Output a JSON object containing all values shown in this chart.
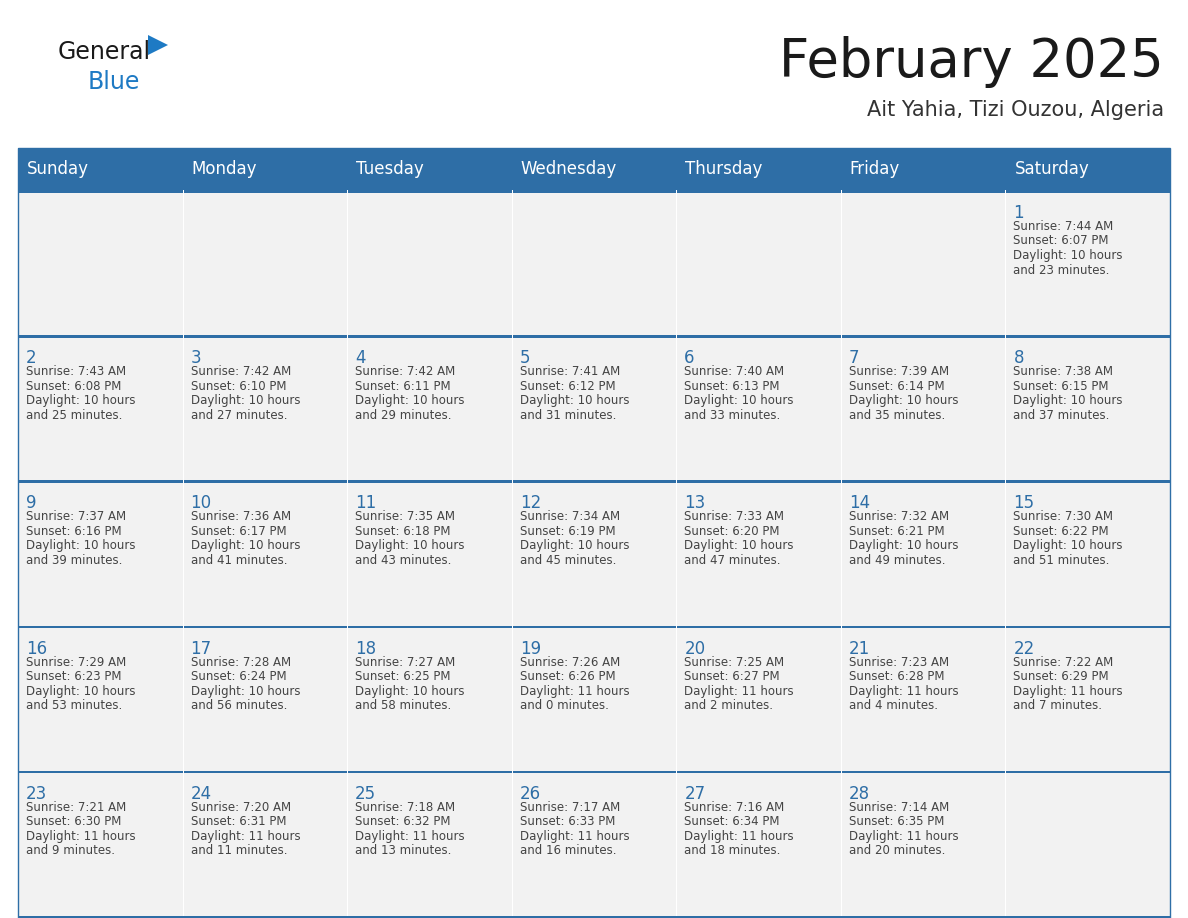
{
  "title": "February 2025",
  "subtitle": "Ait Yahia, Tizi Ouzou, Algeria",
  "header_bg": "#2E6EA6",
  "header_text_color": "#FFFFFF",
  "cell_bg": "#F2F2F2",
  "day_names": [
    "Sunday",
    "Monday",
    "Tuesday",
    "Wednesday",
    "Thursday",
    "Friday",
    "Saturday"
  ],
  "title_color": "#1a1a1a",
  "subtitle_color": "#333333",
  "line_color": "#2E6EA6",
  "day_number_color": "#2E6EA6",
  "cell_text_color": "#444444",
  "logo_black": "#1a1a1a",
  "logo_blue": "#1E7AC4",
  "logo_triangle": "#1E7AC4",
  "weeks": [
    [
      {
        "day": null,
        "info": null
      },
      {
        "day": null,
        "info": null
      },
      {
        "day": null,
        "info": null
      },
      {
        "day": null,
        "info": null
      },
      {
        "day": null,
        "info": null
      },
      {
        "day": null,
        "info": null
      },
      {
        "day": 1,
        "info": "Sunrise: 7:44 AM\nSunset: 6:07 PM\nDaylight: 10 hours\nand 23 minutes."
      }
    ],
    [
      {
        "day": 2,
        "info": "Sunrise: 7:43 AM\nSunset: 6:08 PM\nDaylight: 10 hours\nand 25 minutes."
      },
      {
        "day": 3,
        "info": "Sunrise: 7:42 AM\nSunset: 6:10 PM\nDaylight: 10 hours\nand 27 minutes."
      },
      {
        "day": 4,
        "info": "Sunrise: 7:42 AM\nSunset: 6:11 PM\nDaylight: 10 hours\nand 29 minutes."
      },
      {
        "day": 5,
        "info": "Sunrise: 7:41 AM\nSunset: 6:12 PM\nDaylight: 10 hours\nand 31 minutes."
      },
      {
        "day": 6,
        "info": "Sunrise: 7:40 AM\nSunset: 6:13 PM\nDaylight: 10 hours\nand 33 minutes."
      },
      {
        "day": 7,
        "info": "Sunrise: 7:39 AM\nSunset: 6:14 PM\nDaylight: 10 hours\nand 35 minutes."
      },
      {
        "day": 8,
        "info": "Sunrise: 7:38 AM\nSunset: 6:15 PM\nDaylight: 10 hours\nand 37 minutes."
      }
    ],
    [
      {
        "day": 9,
        "info": "Sunrise: 7:37 AM\nSunset: 6:16 PM\nDaylight: 10 hours\nand 39 minutes."
      },
      {
        "day": 10,
        "info": "Sunrise: 7:36 AM\nSunset: 6:17 PM\nDaylight: 10 hours\nand 41 minutes."
      },
      {
        "day": 11,
        "info": "Sunrise: 7:35 AM\nSunset: 6:18 PM\nDaylight: 10 hours\nand 43 minutes."
      },
      {
        "day": 12,
        "info": "Sunrise: 7:34 AM\nSunset: 6:19 PM\nDaylight: 10 hours\nand 45 minutes."
      },
      {
        "day": 13,
        "info": "Sunrise: 7:33 AM\nSunset: 6:20 PM\nDaylight: 10 hours\nand 47 minutes."
      },
      {
        "day": 14,
        "info": "Sunrise: 7:32 AM\nSunset: 6:21 PM\nDaylight: 10 hours\nand 49 minutes."
      },
      {
        "day": 15,
        "info": "Sunrise: 7:30 AM\nSunset: 6:22 PM\nDaylight: 10 hours\nand 51 minutes."
      }
    ],
    [
      {
        "day": 16,
        "info": "Sunrise: 7:29 AM\nSunset: 6:23 PM\nDaylight: 10 hours\nand 53 minutes."
      },
      {
        "day": 17,
        "info": "Sunrise: 7:28 AM\nSunset: 6:24 PM\nDaylight: 10 hours\nand 56 minutes."
      },
      {
        "day": 18,
        "info": "Sunrise: 7:27 AM\nSunset: 6:25 PM\nDaylight: 10 hours\nand 58 minutes."
      },
      {
        "day": 19,
        "info": "Sunrise: 7:26 AM\nSunset: 6:26 PM\nDaylight: 11 hours\nand 0 minutes."
      },
      {
        "day": 20,
        "info": "Sunrise: 7:25 AM\nSunset: 6:27 PM\nDaylight: 11 hours\nand 2 minutes."
      },
      {
        "day": 21,
        "info": "Sunrise: 7:23 AM\nSunset: 6:28 PM\nDaylight: 11 hours\nand 4 minutes."
      },
      {
        "day": 22,
        "info": "Sunrise: 7:22 AM\nSunset: 6:29 PM\nDaylight: 11 hours\nand 7 minutes."
      }
    ],
    [
      {
        "day": 23,
        "info": "Sunrise: 7:21 AM\nSunset: 6:30 PM\nDaylight: 11 hours\nand 9 minutes."
      },
      {
        "day": 24,
        "info": "Sunrise: 7:20 AM\nSunset: 6:31 PM\nDaylight: 11 hours\nand 11 minutes."
      },
      {
        "day": 25,
        "info": "Sunrise: 7:18 AM\nSunset: 6:32 PM\nDaylight: 11 hours\nand 13 minutes."
      },
      {
        "day": 26,
        "info": "Sunrise: 7:17 AM\nSunset: 6:33 PM\nDaylight: 11 hours\nand 16 minutes."
      },
      {
        "day": 27,
        "info": "Sunrise: 7:16 AM\nSunset: 6:34 PM\nDaylight: 11 hours\nand 18 minutes."
      },
      {
        "day": 28,
        "info": "Sunrise: 7:14 AM\nSunset: 6:35 PM\nDaylight: 11 hours\nand 20 minutes."
      },
      {
        "day": null,
        "info": null
      }
    ]
  ]
}
